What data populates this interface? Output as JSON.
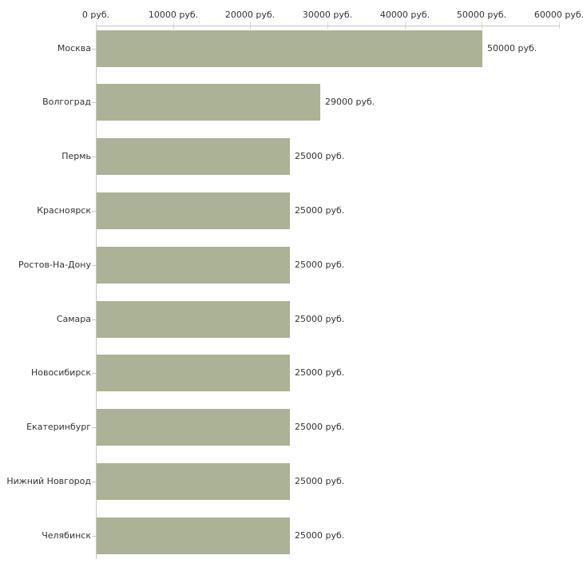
{
  "chart_data": {
    "type": "bar",
    "orientation": "horizontal",
    "title": "",
    "categories": [
      "Москва",
      "Волгоград",
      "Пермь",
      "Красноярск",
      "Ростов-На-Дону",
      "Самара",
      "Новосибирск",
      "Екатеринбург",
      "Нижний Новгород",
      "Челябинск"
    ],
    "values": [
      50000,
      29000,
      25000,
      25000,
      25000,
      25000,
      25000,
      25000,
      25000,
      25000
    ],
    "value_labels": [
      "50000 руб.",
      "29000 руб.",
      "25000 руб.",
      "25000 руб.",
      "25000 руб.",
      "25000 руб.",
      "25000 руб.",
      "25000 руб.",
      "25000 руб.",
      "25000 руб."
    ],
    "unit_suffix": " руб.",
    "x_axis": {
      "position": "top",
      "min": 0,
      "max": 60000,
      "tick_interval": 10000,
      "tick_labels": [
        "0 руб.",
        "10000 руб.",
        "20000 руб.",
        "30000 руб.",
        "40000 руб.",
        "50000 руб.",
        "60000 руб."
      ]
    },
    "grid": false,
    "legend": false,
    "colors": {
      "bar": "#acb295",
      "axis": "#c6c6c6",
      "x_tick": "#d6d8b4",
      "y_tick": "#c9c9b4",
      "text": "#333333",
      "background": "#ffffff"
    }
  }
}
